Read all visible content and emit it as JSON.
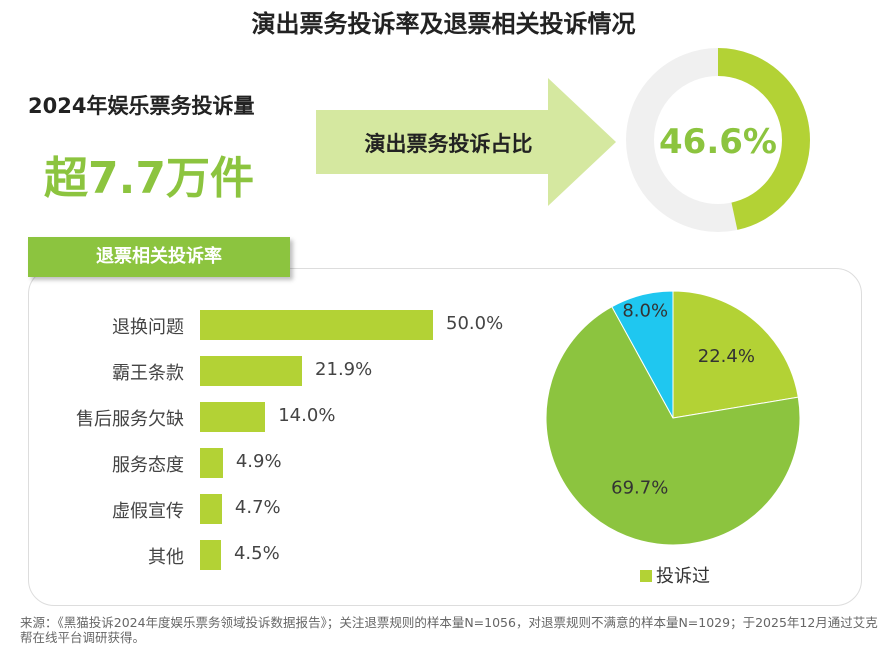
{
  "title": "演出票务投诉率及退票相关投诉情况",
  "kpi": {
    "label": "2024年娱乐票务投诉量",
    "value": "超7.7万件"
  },
  "arrow_label": "演出票务投诉占比",
  "donut": {
    "label": "46.6%",
    "value": 46.6,
    "colors": {
      "fill": "#b3d235",
      "track": "#f0f0f0"
    }
  },
  "section_title": "退票相关投诉率",
  "chart_data": [
    {
      "type": "bar",
      "orientation": "horizontal",
      "categories": [
        "退换问题",
        "霸王条款",
        "售后服务欠缺",
        "服务态度",
        "虚假宣传",
        "其他"
      ],
      "values": [
        50.0,
        21.9,
        14.0,
        4.9,
        4.7,
        4.5
      ],
      "labels": [
        "50.0%",
        "21.9%",
        "14.0%",
        "4.9%",
        "4.7%",
        "4.5%"
      ],
      "unit": "%",
      "color": "#b3d235"
    },
    {
      "type": "pie",
      "slices": [
        {
          "value": 22.4,
          "label": "22.4%",
          "color": "#b3d235"
        },
        {
          "value": 69.7,
          "label": "69.7%",
          "color": "#8cc43f"
        },
        {
          "value": 8.0,
          "label": "8.0%",
          "color": "#1fc7f0"
        }
      ],
      "legend": [
        "投诉过"
      ],
      "legend_placement": "bottom"
    }
  ],
  "source": "来源：《黑猫投诉2024年度娱乐票务领域投诉数据报告》；关注退票规则的样本量N=1056，对退票规则不满意的样本量N=1029；于2025年12月通过艾克帮在线平台调研获得。"
}
